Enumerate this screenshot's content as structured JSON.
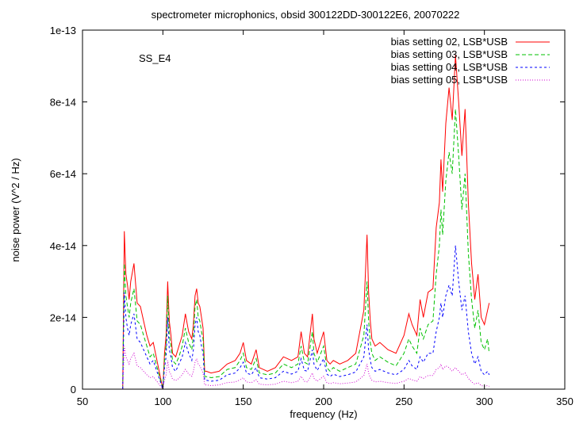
{
  "chart_data": {
    "type": "line",
    "title": "spectrometer microphonics, obsid 300122DD-300122E6, 20070222",
    "annotation": "SS_E4",
    "xlabel": "frequency (Hz)",
    "ylabel": "noise power (V^2 / Hz)",
    "xlim": [
      50,
      350
    ],
    "ylim": [
      0,
      1e-13
    ],
    "x_ticks": [
      50,
      100,
      150,
      200,
      250,
      300,
      350
    ],
    "x_tick_labels": [
      "50",
      "100",
      "150",
      "200",
      "250",
      "300",
      "350"
    ],
    "y_ticks": [
      0,
      2e-14,
      4e-14,
      6e-14,
      8e-14,
      1e-13
    ],
    "y_tick_labels": [
      "0",
      "2e-14",
      "4e-14",
      "6e-14",
      "8e-14",
      "1e-13"
    ],
    "grid": false,
    "legend_position": "top-right",
    "x": [
      75,
      76,
      77,
      78,
      79,
      80,
      82,
      84,
      86,
      88,
      90,
      92,
      94,
      100,
      101,
      102,
      103,
      104,
      105,
      106,
      108,
      110,
      112,
      114,
      116,
      118,
      119,
      120,
      121,
      122,
      123,
      124,
      125,
      126,
      127,
      130,
      135,
      140,
      145,
      148,
      150,
      152,
      155,
      158,
      160,
      165,
      170,
      175,
      180,
      184,
      186,
      188,
      190,
      193,
      194,
      196,
      200,
      202,
      204,
      206,
      210,
      215,
      220,
      225,
      227,
      228,
      229,
      230,
      232,
      235,
      240,
      245,
      250,
      253,
      255,
      258,
      260,
      262,
      265,
      268,
      270,
      272,
      273,
      274,
      276,
      278,
      280,
      282,
      284,
      286,
      288,
      290,
      292,
      294,
      296,
      298,
      300,
      302,
      303
    ],
    "series": [
      {
        "name": "bias setting 02, LSB*USB",
        "color": "#ff0000",
        "dash": "solid",
        "values": [
          0,
          4.4e-14,
          3.2e-14,
          2.9e-14,
          2.5e-14,
          3e-14,
          3.5e-14,
          2.4e-14,
          2.3e-14,
          1.9e-14,
          1.5e-14,
          1.2e-14,
          1.3e-14,
          0,
          1e-14,
          1.5e-14,
          3e-14,
          1.9e-14,
          1.5e-14,
          1e-14,
          9e-15,
          1.2e-14,
          1.5e-14,
          2.1e-14,
          1.6e-14,
          1.4e-14,
          1.8e-14,
          2.6e-14,
          2.8e-14,
          2.4e-14,
          2.3e-14,
          2e-14,
          1.7e-14,
          5e-15,
          5e-15,
          4.5e-15,
          5e-15,
          7e-15,
          8e-15,
          1e-14,
          1.3e-14,
          8e-15,
          7e-15,
          1.1e-14,
          6e-15,
          5e-15,
          6e-15,
          9e-15,
          8e-15,
          9e-15,
          1.6e-14,
          1e-14,
          9e-15,
          2.1e-14,
          1.4e-14,
          1e-14,
          1.6e-14,
          8e-15,
          7e-15,
          8e-15,
          7e-15,
          8e-15,
          1e-14,
          2.2e-14,
          4.3e-14,
          2.7e-14,
          1.9e-14,
          1.4e-14,
          1.2e-14,
          1.3e-14,
          1.1e-14,
          1e-14,
          1.5e-14,
          2.1e-14,
          1.8e-14,
          1.5e-14,
          2.5e-14,
          2e-14,
          2.7e-14,
          2.8e-14,
          4.5e-14,
          5.2e-14,
          6.4e-14,
          5.5e-14,
          7.4e-14,
          8.4e-14,
          7.5e-14,
          9.3e-14,
          8e-14,
          6.5e-14,
          7.8e-14,
          5.2e-14,
          3.5e-14,
          2.5e-14,
          3.2e-14,
          2e-14,
          1.8e-14,
          2.2e-14,
          2.4e-14
        ]
      },
      {
        "name": "bias setting 03, LSB*USB",
        "color": "#00c000",
        "dash": "5,3",
        "values": [
          0,
          3.5e-14,
          2.6e-14,
          2.3e-14,
          2e-14,
          2.4e-14,
          2.8e-14,
          1.9e-14,
          1.8e-14,
          1.5e-14,
          1.2e-14,
          9e-15,
          1e-14,
          0,
          8e-15,
          1.2e-14,
          2.6e-14,
          1.5e-14,
          1.2e-14,
          8e-15,
          7e-15,
          9e-15,
          1.2e-14,
          1.7e-14,
          1.3e-14,
          1.1e-14,
          1.5e-14,
          2.3e-14,
          2.5e-14,
          2e-14,
          1.9e-14,
          1.6e-14,
          1.4e-14,
          3.5e-15,
          3.5e-15,
          3.2e-15,
          3.5e-15,
          5.5e-15,
          6e-15,
          8e-15,
          1e-14,
          6e-15,
          5.5e-15,
          8.5e-15,
          4.5e-15,
          4e-15,
          4.5e-15,
          7e-15,
          6e-15,
          7e-15,
          1.2e-14,
          7.5e-15,
          7e-15,
          1.6e-14,
          1e-14,
          7.5e-15,
          1.2e-14,
          6e-15,
          5e-15,
          6e-15,
          5e-15,
          6e-15,
          7e-15,
          1.5e-14,
          3e-14,
          1.9e-14,
          1.3e-14,
          1e-14,
          8e-15,
          9e-15,
          7.5e-15,
          6.5e-15,
          1e-14,
          1.4e-14,
          1.2e-14,
          1e-14,
          1.7e-14,
          1.4e-14,
          1.8e-14,
          1.9e-14,
          3.2e-14,
          4e-14,
          5e-14,
          4.3e-14,
          5.8e-14,
          6.6e-14,
          6e-14,
          7.8e-14,
          6.5e-14,
          5e-14,
          6e-14,
          3.8e-14,
          2.5e-14,
          1.7e-14,
          2.2e-14,
          1.3e-14,
          1.1e-14,
          1.4e-14,
          1e-14
        ]
      },
      {
        "name": "bias setting 04, LSB*USB",
        "color": "#0000ff",
        "dash": "3,3",
        "values": [
          0,
          2.7e-14,
          2e-14,
          1.7e-14,
          1.5e-14,
          1.8e-14,
          2.1e-14,
          1.4e-14,
          1.3e-14,
          1.1e-14,
          9e-15,
          7e-15,
          8e-15,
          0,
          6e-15,
          9e-15,
          2e-14,
          1.1e-14,
          9e-15,
          6e-15,
          5e-15,
          7e-15,
          9e-15,
          1.3e-14,
          1e-14,
          8e-15,
          1.1e-14,
          1.8e-14,
          2e-14,
          1.6e-14,
          1.5e-14,
          1.2e-14,
          1e-14,
          2.5e-15,
          2.5e-15,
          2.2e-15,
          2.5e-15,
          4e-15,
          4.5e-15,
          6e-15,
          7.5e-15,
          4.5e-15,
          4e-15,
          6e-15,
          3.2e-15,
          2.8e-15,
          3.2e-15,
          5e-15,
          4.2e-15,
          5e-15,
          8.5e-15,
          5.2e-15,
          5e-15,
          1.1e-14,
          7e-15,
          5.2e-15,
          8.5e-15,
          4.2e-15,
          3.5e-15,
          4.2e-15,
          3.5e-15,
          4e-15,
          4.8e-15,
          9e-15,
          1.8e-14,
          1.1e-14,
          8e-15,
          6e-15,
          5e-15,
          5.5e-15,
          4.5e-15,
          4e-15,
          5.5e-15,
          8e-15,
          6.5e-15,
          5.5e-15,
          9e-15,
          7.5e-15,
          1e-14,
          1e-14,
          1.6e-14,
          2e-14,
          2.4e-14,
          2e-14,
          2.6e-14,
          2.9e-14,
          2.6e-14,
          4e-14,
          3e-14,
          2.2e-14,
          2.6e-14,
          1.6e-14,
          1e-14,
          7e-15,
          9e-15,
          5e-15,
          4e-15,
          5e-15,
          4e-15
        ]
      },
      {
        "name": "bias setting 05, LSB*USB",
        "color": "#d000d0",
        "dash": "1,2",
        "values": [
          0,
          1.2e-14,
          9e-15,
          8e-15,
          7e-15,
          8.5e-15,
          1e-14,
          6.5e-15,
          6e-15,
          5e-15,
          4e-15,
          3.2e-15,
          3.5e-15,
          0,
          2.5e-15,
          4e-15,
          8e-15,
          5e-15,
          4e-15,
          2.8e-15,
          2.4e-15,
          3e-15,
          4e-15,
          5.5e-15,
          4.2e-15,
          3.6e-15,
          5e-15,
          7.5e-15,
          8.5e-15,
          7e-15,
          6.5e-15,
          5.5e-15,
          4.5e-15,
          1.2e-15,
          1.2e-15,
          1e-15,
          1.2e-15,
          1.8e-15,
          2e-15,
          2.6e-15,
          3.2e-15,
          2e-15,
          1.8e-15,
          2.6e-15,
          1.4e-15,
          1.2e-15,
          1.4e-15,
          2.2e-15,
          1.8e-15,
          2.2e-15,
          3.6e-15,
          2.2e-15,
          2e-15,
          4.5e-15,
          3e-15,
          2.2e-15,
          3.6e-15,
          1.8e-15,
          1.5e-15,
          1.8e-15,
          1.5e-15,
          1.7e-15,
          2e-15,
          3.8e-15,
          7e-15,
          4.5e-15,
          3.2e-15,
          2.5e-15,
          2e-15,
          2.2e-15,
          1.8e-15,
          1.6e-15,
          2.2e-15,
          3e-15,
          2.6e-15,
          2.2e-15,
          3.5e-15,
          3e-15,
          3.8e-15,
          3.8e-15,
          5.5e-15,
          6e-15,
          7e-15,
          5.5e-15,
          6.5e-15,
          6e-15,
          5e-15,
          6e-15,
          5e-15,
          4e-15,
          4.5e-15,
          3e-15,
          2e-15,
          1.4e-15,
          1.8e-15,
          1e-15,
          8e-16,
          1e-15,
          8e-16
        ]
      }
    ]
  }
}
